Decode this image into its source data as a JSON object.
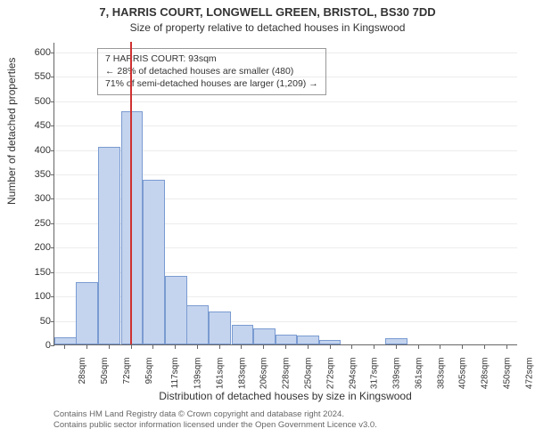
{
  "title": "7, HARRIS COURT, LONGWELL GREEN, BRISTOL, BS30 7DD",
  "subtitle": "Size of property relative to detached houses in Kingswood",
  "ylabel": "Number of detached properties",
  "xlabel": "Distribution of detached houses by size in Kingswood",
  "attribution1": "Contains HM Land Registry data © Crown copyright and database right 2024.",
  "attribution2": "Contains public sector information licensed under the Open Government Licence v3.0.",
  "chart": {
    "type": "histogram",
    "background_color": "#ffffff",
    "bar_fill": "#c4d4ee",
    "bar_border": "#7a9bd1",
    "grid_color": "#666666",
    "grid_opacity": 0.12,
    "axis_color": "#666666",
    "marker_color": "#d03030",
    "marker_x": 93,
    "xlim": [
      17,
      483
    ],
    "ylim": [
      0,
      620
    ],
    "ytick_step": 50,
    "xtick_step": 22.2,
    "xtick_start": 28,
    "xtick_count": 21,
    "xtick_unit": "sqm",
    "categories": [
      28,
      50,
      72,
      95,
      117,
      139,
      161,
      183,
      206,
      228,
      250,
      272,
      294,
      317,
      339,
      361,
      383,
      405,
      428,
      450,
      472
    ],
    "values": [
      15,
      128,
      405,
      478,
      337,
      140,
      80,
      68,
      40,
      33,
      20,
      18,
      10,
      0,
      0,
      12,
      0,
      0,
      0,
      0,
      0
    ],
    "title_fontsize": 13,
    "subtitle_fontsize": 12,
    "label_fontsize": 12,
    "tick_fontsize": 11,
    "xtick_fontsize": 10
  },
  "legend": {
    "line1": "7 HARRIS COURT: 93sqm",
    "line2": "← 28% of detached houses are smaller (480)",
    "line3": "71% of semi-detached houses are larger (1,209) →",
    "border_color": "#999999",
    "background": "#ffffff",
    "fontsize": 10.5
  }
}
